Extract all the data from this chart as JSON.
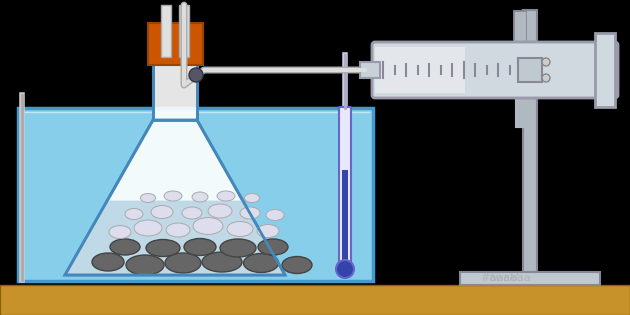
{
  "bg_color": "#000000",
  "bench_color": "#c8922a",
  "bench_edge": "#8B6000",
  "water_color": "#87ceeb",
  "water_edge": "#4499cc",
  "flask_fill": "#ffffff",
  "flask_edge": "#4488bb",
  "liquid_color": "#aaccdd",
  "stopper_color": "#cc5500",
  "stopper_edge": "#994400",
  "tube_color": "#dddddd",
  "tube_edge": "#aaaaaa",
  "syringe_barrel": "#d0d8e0",
  "syringe_edge": "#999aaa",
  "syringe_mark": "#888899",
  "syringe_light": "#e8ecf0",
  "stand_color": "#b0b8c0",
  "stand_edge": "#888898",
  "base_color": "#c0c8d0",
  "thermo_fill": "#e8e8ff",
  "thermo_edge": "#6666cc",
  "mercury_color": "#3344aa",
  "pebble_dark": "#666666",
  "pebble_edge": "#444444",
  "pebble_light": "#ddddee",
  "pebble_light_edge": "#aaaaaa",
  "twinkl_color": "#aaaaaa",
  "figw": 6.3,
  "figh": 3.15,
  "dpi": 100
}
